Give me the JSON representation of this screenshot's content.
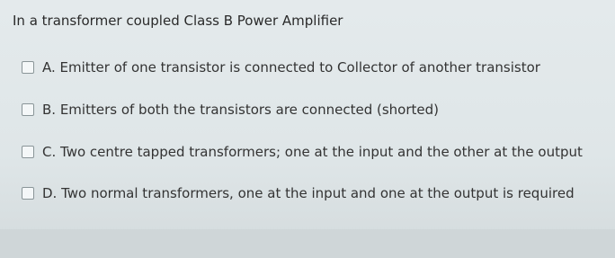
{
  "question": "In a transformer coupled Class B Power Amplifier",
  "options": [
    "A. Emitter of one transistor is connected to Collector of another transistor",
    "B. Emitters of both the transistors are connected (shorted)",
    "C. Two centre tapped transformers; one at the input and the other at the output",
    "D. Two normal transformers, one at the input and one at the output is required"
  ]
}
